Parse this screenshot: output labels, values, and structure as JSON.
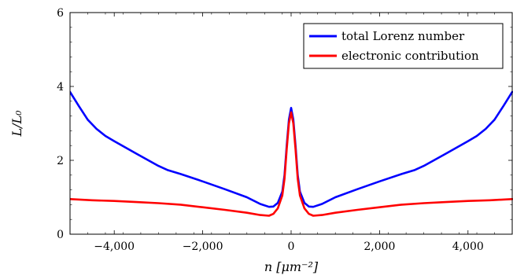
{
  "chart_data": {
    "type": "line",
    "xlabel": "n [μm⁻²]",
    "ylabel": "L/L₀",
    "xlim": [
      -5000,
      5000
    ],
    "ylim": [
      0,
      6
    ],
    "x_ticks": [
      -4000,
      -2000,
      0,
      2000,
      4000
    ],
    "x_tick_labels": [
      "−4,000",
      "−2,000",
      "0",
      "2,000",
      "4,000"
    ],
    "y_ticks": [
      0,
      2,
      4,
      6
    ],
    "y_tick_labels": [
      "0",
      "2",
      "4",
      "6"
    ],
    "legend_position": "top-right",
    "series": [
      {
        "name": "total Lorenz number",
        "color": "#0000ff",
        "x": [
          -5000,
          -4800,
          -4600,
          -4400,
          -4200,
          -4000,
          -3500,
          -3000,
          -2800,
          -2500,
          -2000,
          -1500,
          -1000,
          -700,
          -500,
          -400,
          -300,
          -200,
          -150,
          -100,
          -50,
          0,
          50,
          100,
          150,
          200,
          300,
          400,
          500,
          700,
          1000,
          1500,
          2000,
          2500,
          2800,
          3000,
          3500,
          4000,
          4200,
          4400,
          4600,
          4800,
          5000
        ],
        "y": [
          3.85,
          3.47,
          3.1,
          2.85,
          2.66,
          2.52,
          2.18,
          1.85,
          1.74,
          1.63,
          1.43,
          1.22,
          1.0,
          0.82,
          0.74,
          0.75,
          0.85,
          1.15,
          1.6,
          2.4,
          3.1,
          3.42,
          3.1,
          2.4,
          1.6,
          1.15,
          0.85,
          0.75,
          0.74,
          0.82,
          1.0,
          1.22,
          1.43,
          1.63,
          1.74,
          1.85,
          2.18,
          2.52,
          2.66,
          2.85,
          3.1,
          3.47,
          3.85
        ]
      },
      {
        "name": "electronic contribution",
        "color": "#ff0000",
        "x": [
          -5000,
          -4500,
          -4000,
          -3500,
          -3000,
          -2500,
          -2000,
          -1500,
          -1000,
          -700,
          -500,
          -400,
          -300,
          -200,
          -150,
          -100,
          -50,
          0,
          50,
          100,
          150,
          200,
          300,
          400,
          500,
          700,
          1000,
          1500,
          2000,
          2500,
          3000,
          3500,
          4000,
          4500,
          5000
        ],
        "y": [
          0.95,
          0.92,
          0.9,
          0.87,
          0.84,
          0.8,
          0.73,
          0.66,
          0.58,
          0.52,
          0.5,
          0.55,
          0.7,
          1.05,
          1.5,
          2.3,
          3.0,
          3.3,
          3.0,
          2.3,
          1.5,
          1.05,
          0.7,
          0.55,
          0.5,
          0.52,
          0.58,
          0.66,
          0.73,
          0.8,
          0.84,
          0.87,
          0.9,
          0.92,
          0.95
        ]
      }
    ]
  }
}
